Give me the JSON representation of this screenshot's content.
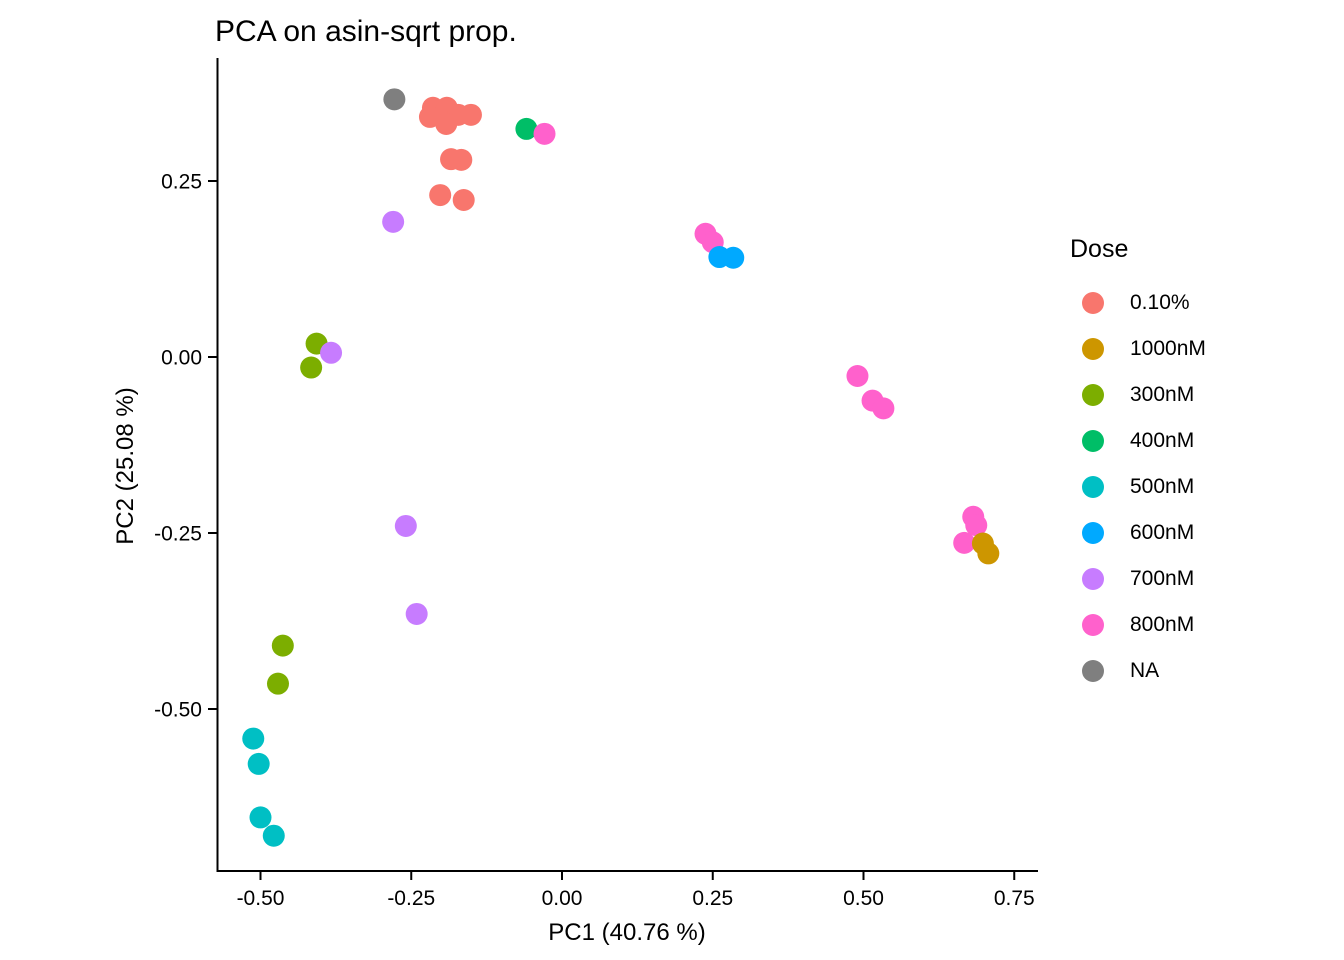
{
  "chart_data": {
    "type": "scatter",
    "title": "PCA on asin-sqrt prop.",
    "xlabel": "PC1 (40.76 %)",
    "ylabel": "PC2 (25.08 %)",
    "legend_title": "Dose",
    "legend_position": "right",
    "grid": false,
    "point_radius_px": 11,
    "axis_color": "#000000",
    "x_axis": {
      "ticks": [
        -0.5,
        -0.25,
        0.0,
        0.25,
        0.5,
        0.75
      ],
      "tick_labels": [
        "-0.50",
        "-0.25",
        "0.00",
        "0.25",
        "0.50",
        "0.75"
      ],
      "range": [
        -0.575,
        0.79
      ]
    },
    "y_axis": {
      "ticks": [
        0.25,
        0.0,
        -0.25,
        -0.5
      ],
      "tick_labels": [
        "0.25",
        "0.00",
        "-0.25",
        "-0.50"
      ],
      "range": [
        -0.73,
        0.42
      ]
    },
    "series": [
      {
        "name": "0.10%",
        "color": "#F8766D",
        "points": [
          [
            -0.214,
            0.354
          ],
          [
            -0.191,
            0.354
          ],
          [
            -0.219,
            0.341
          ],
          [
            -0.172,
            0.344
          ],
          [
            -0.151,
            0.344
          ],
          [
            -0.192,
            0.331
          ],
          [
            -0.184,
            0.281
          ],
          [
            -0.167,
            0.28
          ],
          [
            -0.202,
            0.23
          ],
          [
            -0.163,
            0.223
          ]
        ]
      },
      {
        "name": "1000nM",
        "color": "#CD9600",
        "points": [
          [
            0.698,
            -0.265
          ],
          [
            0.707,
            -0.279
          ]
        ]
      },
      {
        "name": "300nM",
        "color": "#7CAE00",
        "points": [
          [
            -0.407,
            0.019
          ],
          [
            -0.416,
            -0.015
          ],
          [
            -0.463,
            -0.41
          ],
          [
            -0.471,
            -0.464
          ]
        ]
      },
      {
        "name": "400nM",
        "color": "#00BE67",
        "points": [
          [
            -0.059,
            0.324
          ]
        ]
      },
      {
        "name": "500nM",
        "color": "#00BFC4",
        "points": [
          [
            -0.512,
            -0.542
          ],
          [
            -0.503,
            -0.578
          ],
          [
            -0.5,
            -0.654
          ],
          [
            -0.478,
            -0.68
          ]
        ]
      },
      {
        "name": "600nM",
        "color": "#00A9FF",
        "points": [
          [
            0.261,
            0.142
          ],
          [
            0.284,
            0.141
          ]
        ]
      },
      {
        "name": "700nM",
        "color": "#C77CFF",
        "points": [
          [
            -0.28,
            0.192
          ],
          [
            -0.383,
            0.006
          ],
          [
            -0.259,
            -0.24
          ],
          [
            -0.241,
            -0.365
          ]
        ]
      },
      {
        "name": "800nM",
        "color": "#FF61CC",
        "points": [
          [
            -0.029,
            0.317
          ],
          [
            0.238,
            0.175
          ],
          [
            0.25,
            0.163
          ],
          [
            0.49,
            -0.027
          ],
          [
            0.515,
            -0.062
          ],
          [
            0.533,
            -0.073
          ],
          [
            0.682,
            -0.227
          ],
          [
            0.687,
            -0.239
          ],
          [
            0.667,
            -0.264
          ]
        ]
      },
      {
        "name": "NA",
        "color": "#7F7F7F",
        "points": [
          [
            -0.278,
            0.366
          ]
        ]
      }
    ]
  }
}
